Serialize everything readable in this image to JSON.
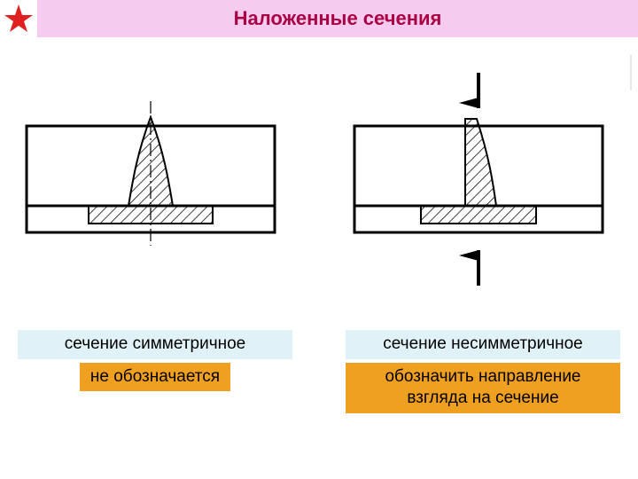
{
  "header": {
    "title": "Наложенные сечения",
    "title_color": "#aa0044",
    "title_bg": "#f5ccf0",
    "star_color": "#e02020"
  },
  "left": {
    "label1": "сечение симметричное",
    "label1_bg": "#e0f2f7",
    "label2": "не обозначается",
    "label2_bg": "#f0a020"
  },
  "right": {
    "label1": "сечение несимметричное",
    "label1_bg": "#e0f2f7",
    "label2": "обозначить направление взгляда на сечение",
    "label2_bg": "#f0a020"
  },
  "colors": {
    "text": "#000000",
    "stroke": "#000000",
    "hatch": "#000000",
    "bg": "#ffffff"
  }
}
